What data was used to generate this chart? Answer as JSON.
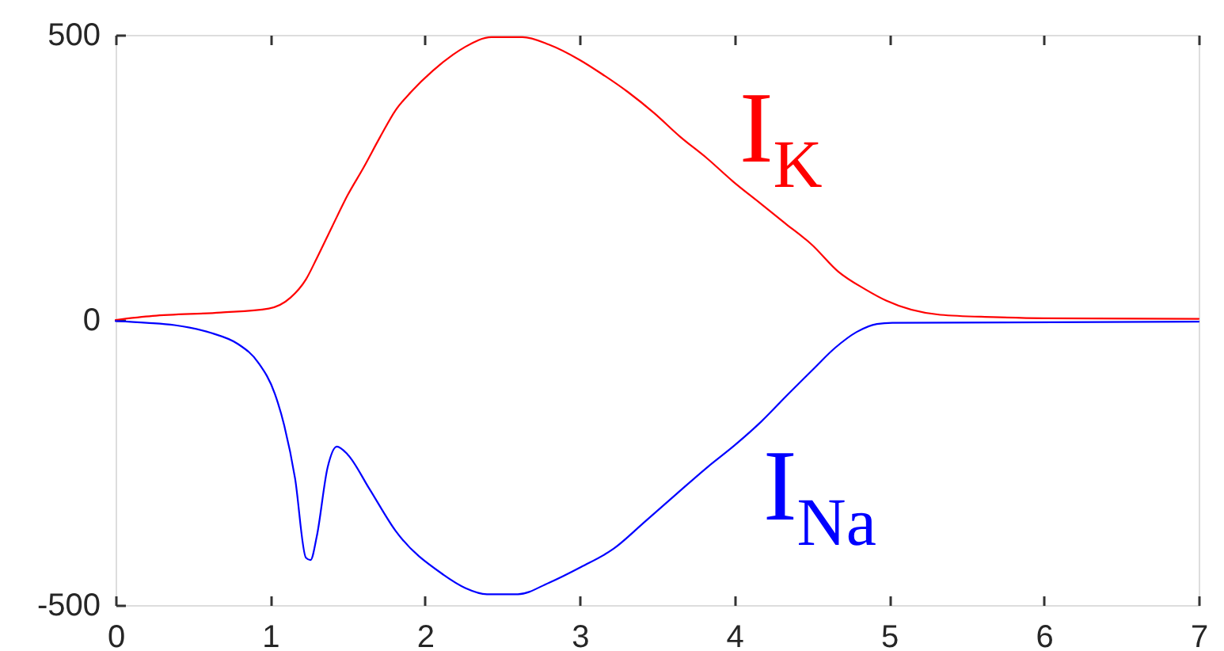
{
  "chart_data": {
    "type": "line",
    "xlim": [
      0,
      7
    ],
    "xticks": [
      0,
      1,
      2,
      3,
      4,
      5,
      6,
      7
    ],
    "ylim": [
      -500,
      500
    ],
    "yticks": [
      -500,
      0,
      500
    ],
    "grid": false,
    "legend": false,
    "marker": "none",
    "line_style": "solid",
    "series": [
      {
        "name": "I$_{K}$",
        "color": "#ff0000",
        "x": [
          0,
          0.24,
          0.68,
          0.99,
          1.13,
          1.23,
          1.3,
          1.4,
          1.5,
          1.6,
          1.71,
          1.81,
          1.91,
          2.05,
          2.18,
          2.26,
          2.43,
          2.63,
          2.8,
          3.0,
          3.14,
          3.31,
          3.48,
          3.65,
          3.82,
          3.99,
          4.16,
          4.33,
          4.5,
          4.67,
          4.85,
          4.98,
          5.33,
          5.67,
          6,
          7
        ],
        "values": [
          0,
          7,
          13,
          20,
          39,
          71,
          108,
          164,
          219,
          266,
          321,
          368,
          400,
          437,
          465,
          479,
          496,
          496,
          483,
          456,
          432,
          400,
          363,
          321,
          284,
          243,
          206,
          169,
          132,
          85,
          53,
          34,
          9,
          5,
          3,
          2
        ]
      },
      {
        "name": "I$_{Na}$",
        "color": "#0000ff",
        "x": [
          0,
          0.2,
          0.38,
          0.62,
          0.79,
          0.92,
          1.03,
          1.09,
          1.16,
          1.23,
          1.26,
          1.3,
          1.37,
          1.43,
          1.5,
          1.64,
          1.81,
          2.12,
          2.26,
          2.4,
          2.6,
          2.8,
          3.01,
          3.22,
          3.42,
          3.63,
          3.83,
          4.0,
          4.17,
          4.34,
          4.51,
          4.65,
          4.79,
          4.92,
          5.02,
          7
        ],
        "values": [
          -2,
          -5,
          -9,
          -23,
          -42,
          -74,
          -130,
          -185,
          -278,
          -417,
          -421,
          -380,
          -259,
          -222,
          -236,
          -296,
          -370,
          -447,
          -470,
          -481,
          -481,
          -461,
          -433,
          -401,
          -354,
          -304,
          -257,
          -220,
          -179,
          -132,
          -86,
          -49,
          -21,
          -7,
          -5,
          -3
        ]
      }
    ]
  }
}
